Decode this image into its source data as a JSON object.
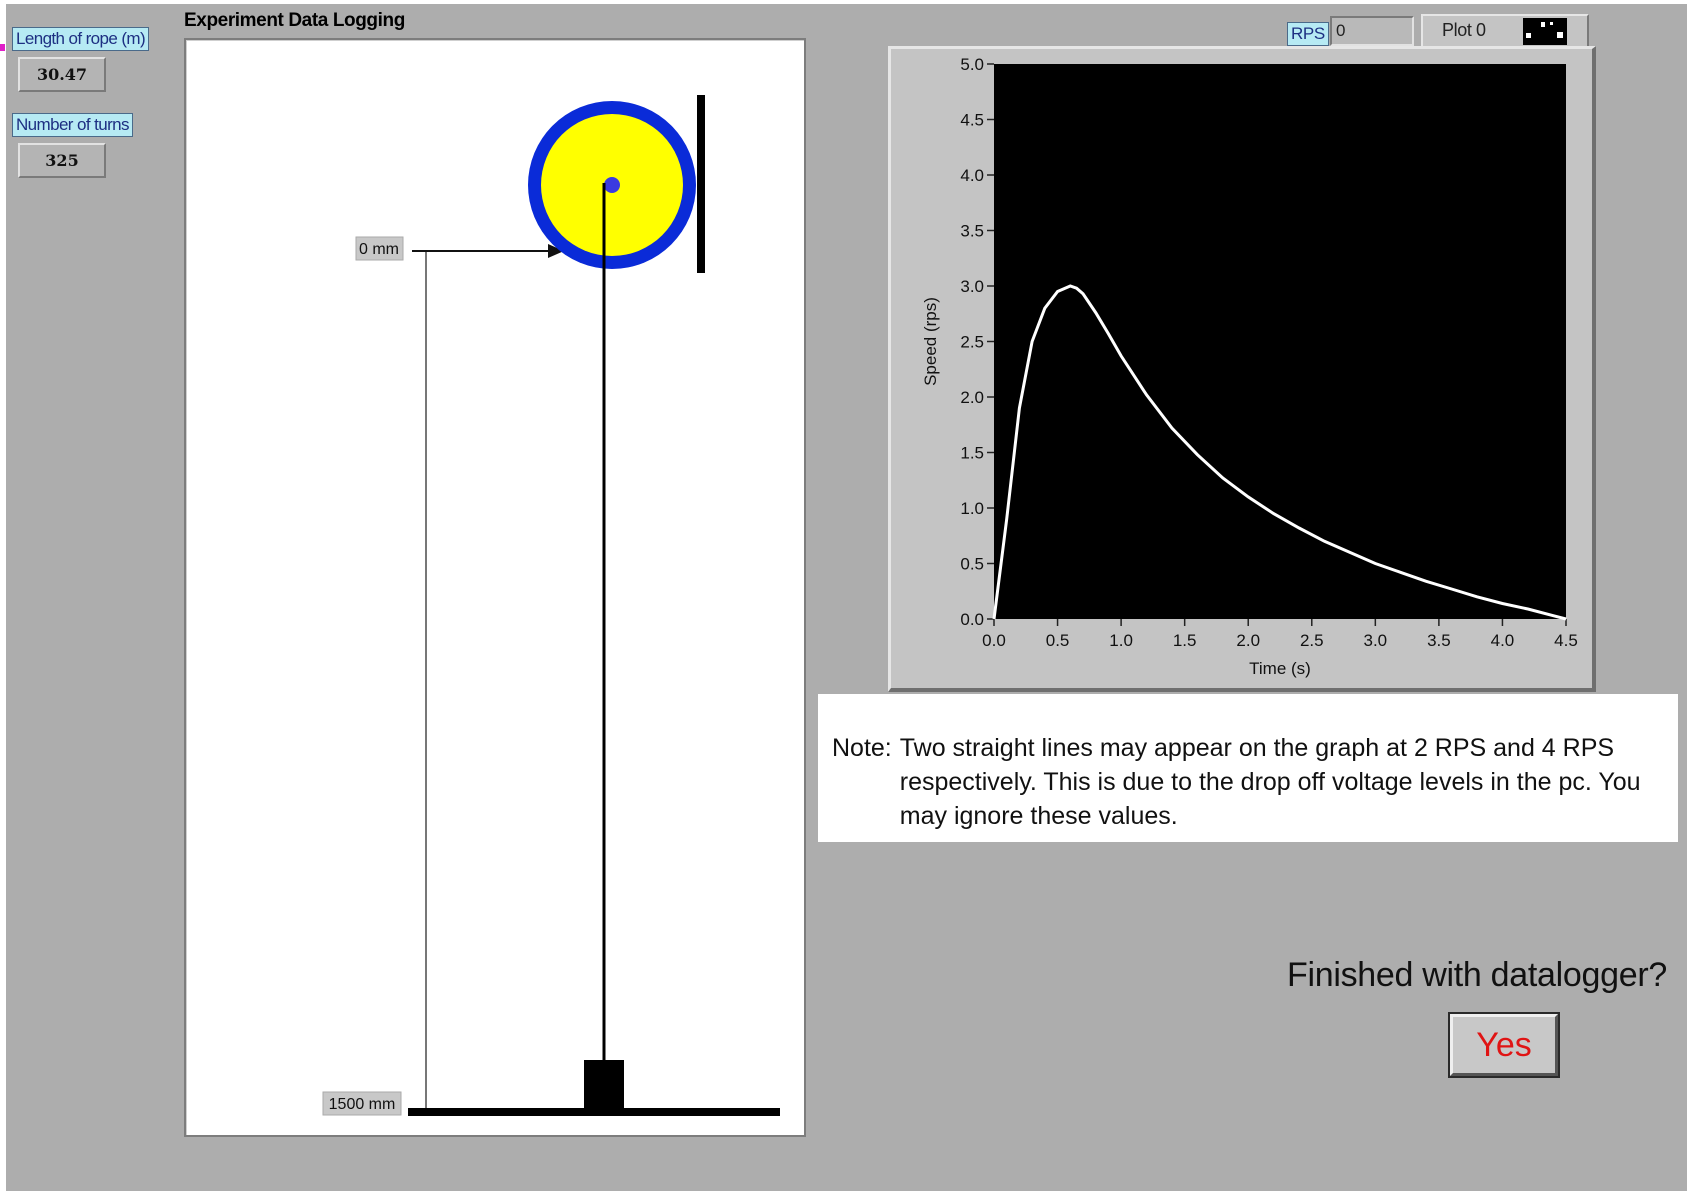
{
  "panel": {
    "title": "Experiment Data Logging"
  },
  "controls": {
    "rope": {
      "label": "Length of rope (m)",
      "value": "30.47"
    },
    "turns": {
      "label": "Number of turns",
      "value": "325"
    }
  },
  "mechanism": {
    "top_marker": "0 mm",
    "bottom_marker": "1500 mm"
  },
  "rps": {
    "label": "RPS",
    "value": "0"
  },
  "legend": {
    "label": "Plot 0"
  },
  "chart_data": {
    "type": "line",
    "title": "",
    "xlabel": "Time (s)",
    "ylabel": "Speed (rps)",
    "xlim": [
      0,
      4.5
    ],
    "ylim": [
      0,
      5
    ],
    "xticks": [
      "0.0",
      "0.5",
      "1.0",
      "1.5",
      "2.0",
      "2.5",
      "3.0",
      "3.5",
      "4.0",
      "4.5"
    ],
    "yticks": [
      "0.0",
      "0.5",
      "1.0",
      "1.5",
      "2.0",
      "2.5",
      "3.0",
      "3.5",
      "4.0",
      "4.5",
      "5.0"
    ],
    "grid": false,
    "background": "#000000",
    "line_color": "#ffffff",
    "series": [
      {
        "name": "Plot 0",
        "x": [
          0.0,
          0.1,
          0.2,
          0.3,
          0.4,
          0.5,
          0.6,
          0.65,
          0.7,
          0.8,
          0.9,
          1.0,
          1.2,
          1.4,
          1.6,
          1.8,
          2.0,
          2.2,
          2.4,
          2.6,
          2.8,
          3.0,
          3.2,
          3.4,
          3.6,
          3.8,
          4.0,
          4.2,
          4.4,
          4.5
        ],
        "y": [
          0.0,
          0.9,
          1.9,
          2.5,
          2.8,
          2.95,
          3.0,
          2.98,
          2.93,
          2.76,
          2.57,
          2.37,
          2.02,
          1.72,
          1.48,
          1.27,
          1.1,
          0.95,
          0.82,
          0.7,
          0.6,
          0.5,
          0.42,
          0.34,
          0.27,
          0.2,
          0.14,
          0.09,
          0.03,
          0.0
        ]
      }
    ]
  },
  "note": {
    "prefix": "Note:",
    "text": "Two straight lines may appear on the graph at 2 RPS and 4 RPS respectively. This is due to the drop off voltage levels in the pc. You may ignore these values."
  },
  "finish": {
    "question": "Finished with datalogger?",
    "button": "Yes"
  },
  "colors": {
    "wheel_fill": "#ffff00",
    "wheel_rim": "#0a2bd8",
    "yes_text": "#e01414",
    "label_bg": "#b6eaf4"
  }
}
